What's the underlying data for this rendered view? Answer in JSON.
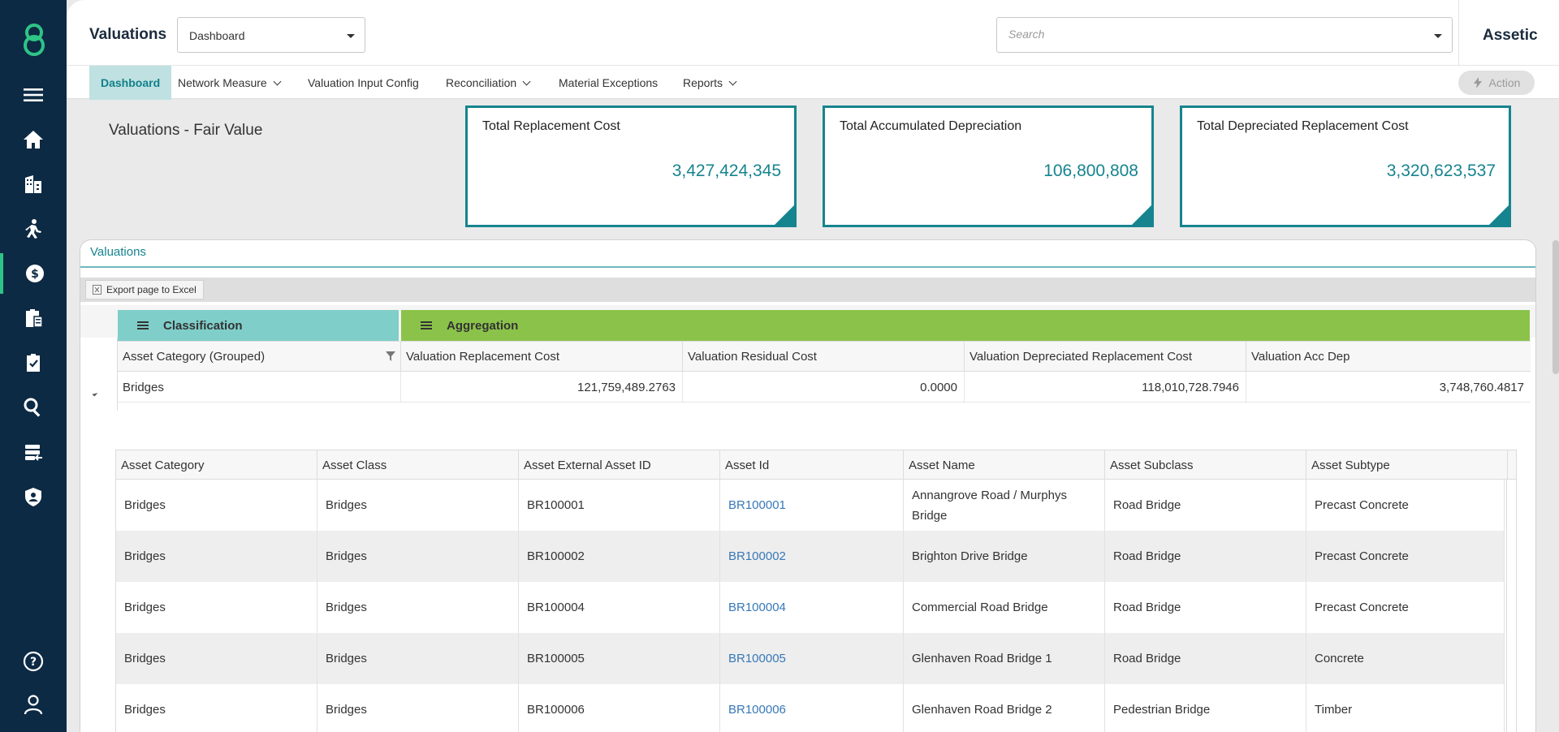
{
  "header": {
    "app_title": "Valuations",
    "dashboard_select": "Dashboard",
    "search_placeholder": "Search",
    "brand": "Assetic"
  },
  "nav": {
    "items": [
      {
        "label": "Dashboard",
        "has_menu": false
      },
      {
        "label": "Network Measure",
        "has_menu": true
      },
      {
        "label": "Valuation Input Config",
        "has_menu": false
      },
      {
        "label": "Reconciliation",
        "has_menu": true
      },
      {
        "label": "Material Exceptions",
        "has_menu": false
      },
      {
        "label": "Reports",
        "has_menu": true
      }
    ],
    "action_label": "Action"
  },
  "page": {
    "heading": "Valuations - Fair Value"
  },
  "kpis": [
    {
      "title": "Total Replacement Cost",
      "value": "3,427,424,345"
    },
    {
      "title": "Total Accumulated Depreciation",
      "value": "106,800,808"
    },
    {
      "title": "Total Depreciated Replacement Cost",
      "value": "3,320,623,537"
    }
  ],
  "panel": {
    "title": "Valuations",
    "export_label": "Export page to Excel",
    "group_classification": "Classification",
    "group_aggregation": "Aggregation",
    "columns": [
      "Asset Category (Grouped)",
      "Valuation Replacement Cost",
      "Valuation Residual Cost",
      "Valuation Depreciated Replacement Cost",
      "Valuation Acc Dep"
    ],
    "agg_row": [
      "Bridges",
      "121,759,489.2763",
      "0.0000",
      "118,010,728.7946",
      "3,748,760.4817"
    ]
  },
  "detail": {
    "columns": [
      "Asset Category",
      "Asset Class",
      "Asset External Asset ID",
      "Asset Id",
      "Asset Name",
      "Asset Subclass",
      "Asset Subtype"
    ],
    "rows": [
      [
        "Bridges",
        "Bridges",
        "BR100001",
        "BR100001",
        "Annangrove Road / Murphys Bridge",
        "Road Bridge",
        "Precast Concrete"
      ],
      [
        "Bridges",
        "Bridges",
        "BR100002",
        "BR100002",
        "Brighton Drive Bridge",
        "Road Bridge",
        "Precast Concrete"
      ],
      [
        "Bridges",
        "Bridges",
        "BR100004",
        "BR100004",
        "Commercial Road Bridge",
        "Road Bridge",
        "Precast Concrete"
      ],
      [
        "Bridges",
        "Bridges",
        "BR100005",
        "BR100005",
        "Glenhaven Road Bridge 1",
        "Road Bridge",
        "Concrete"
      ],
      [
        "Bridges",
        "Bridges",
        "BR100006",
        "BR100006",
        "Glenhaven Road Bridge 2",
        "Pedestrian Bridge",
        "Timber"
      ]
    ]
  },
  "colors": {
    "sidebar": "#0c2a44",
    "accent_teal": "#16848f",
    "classification_band": "#7fcec9",
    "aggregation_band": "#8bc34a",
    "link": "#3778b7",
    "sidebar_active": "#2ec486"
  },
  "sidebar_icons": [
    "logo-icon",
    "menu-icon",
    "home-icon",
    "building-icon",
    "worker-icon",
    "valuation-icon",
    "clipboard-icon",
    "checklist-icon",
    "search-icon",
    "import-icon",
    "shield-user-icon",
    "help-icon",
    "user-icon"
  ]
}
